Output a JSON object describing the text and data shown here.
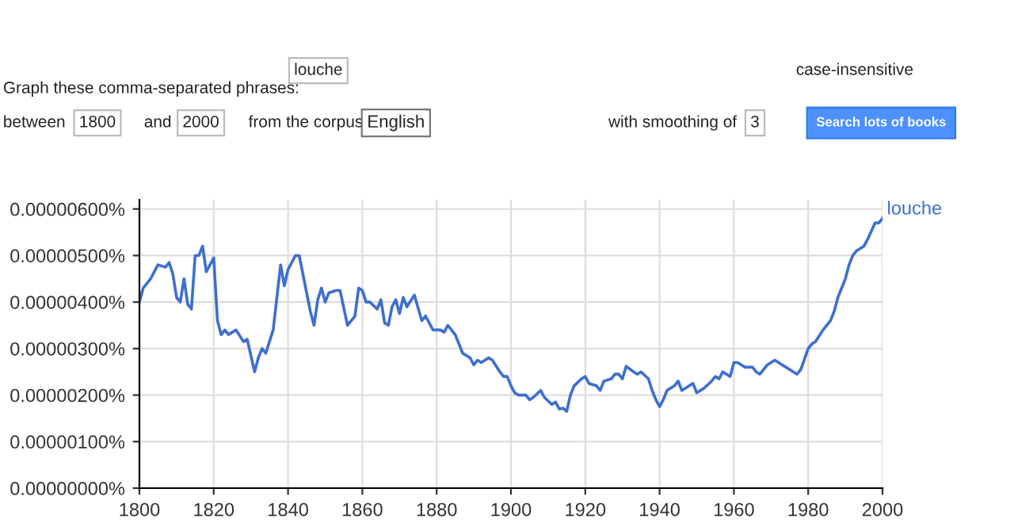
{
  "chart_data": {
    "type": "line",
    "annotations": [
      "Graph these comma-separated phrases:",
      "louche",
      "case-insensitive",
      "between",
      "1800",
      "and",
      "2000",
      "from the corpus",
      "English",
      "with smoothing of",
      "3",
      "Search lots of books"
    ],
    "x": [
      1800,
      1801,
      1803,
      1805,
      1807,
      1808,
      1809,
      1810,
      1811,
      1812,
      1813,
      1814,
      1815,
      1816,
      1817,
      1818,
      1820,
      1821,
      1822,
      1823,
      1824,
      1826,
      1828,
      1829,
      1831,
      1832,
      1833,
      1834,
      1836,
      1838,
      1839,
      1840,
      1842,
      1843,
      1844,
      1846,
      1847,
      1848,
      1849,
      1850,
      1851,
      1853,
      1854,
      1856,
      1858,
      1859,
      1860,
      1861,
      1862,
      1864,
      1865,
      1866,
      1867,
      1868,
      1869,
      1870,
      1871,
      1872,
      1874,
      1876,
      1877,
      1879,
      1881,
      1882,
      1883,
      1885,
      1886,
      1887,
      1889,
      1890,
      1891,
      1892,
      1894,
      1895,
      1897,
      1898,
      1899,
      1900,
      1901,
      1902,
      1903,
      1904,
      1905,
      1906,
      1908,
      1909,
      1911,
      1912,
      1913,
      1914,
      1915,
      1916,
      1917,
      1919,
      1920,
      1921,
      1923,
      1924,
      1925,
      1927,
      1928,
      1929,
      1930,
      1931,
      1933,
      1934,
      1935,
      1937,
      1938,
      1939,
      1940,
      1941,
      1942,
      1944,
      1945,
      1946,
      1948,
      1949,
      1950,
      1952,
      1954,
      1955,
      1956,
      1957,
      1959,
      1960,
      1961,
      1962,
      1963,
      1965,
      1966,
      1967,
      1969,
      1971,
      1972,
      1974,
      1976,
      1977,
      1978,
      1980,
      1981,
      1982,
      1984,
      1986,
      1987,
      1988,
      1990,
      1991,
      1992,
      1993,
      1995,
      1996,
      1998,
      1999,
      2000
    ],
    "series": [
      {
        "name": "louche",
        "color": "#3d6fcf",
        "values": [
          4e-06,
          4.3e-06,
          4.5e-06,
          4.8e-06,
          4.75e-06,
          4.85e-06,
          4.6e-06,
          4.1e-06,
          4e-06,
          4.5e-06,
          3.95e-06,
          3.85e-06,
          5e-06,
          5e-06,
          5.2e-06,
          4.65e-06,
          4.95e-06,
          3.6e-06,
          3.3e-06,
          3.4e-06,
          3.3e-06,
          3.4e-06,
          3.15e-06,
          3.2e-06,
          2.5e-06,
          2.8e-06,
          3e-06,
          2.9e-06,
          3.4e-06,
          4.8e-06,
          4.35e-06,
          4.7e-06,
          5e-06,
          5e-06,
          4.6e-06,
          3.8e-06,
          3.5e-06,
          4.05e-06,
          4.3e-06,
          4e-06,
          4.2e-06,
          4.25e-06,
          4.25e-06,
          3.5e-06,
          3.7e-06,
          4.3e-06,
          4.25e-06,
          4e-06,
          4e-06,
          3.85e-06,
          4.05e-06,
          3.55e-06,
          3.5e-06,
          3.9e-06,
          4.05e-06,
          3.75e-06,
          4.1e-06,
          3.9e-06,
          4.15e-06,
          3.6e-06,
          3.7e-06,
          3.4e-06,
          3.4e-06,
          3.35e-06,
          3.5e-06,
          3.3e-06,
          3.1e-06,
          2.9e-06,
          2.8e-06,
          2.65e-06,
          2.75e-06,
          2.7e-06,
          2.8e-06,
          2.75e-06,
          2.5e-06,
          2.4e-06,
          2.4e-06,
          2.2e-06,
          2.05e-06,
          2e-06,
          2e-06,
          2e-06,
          1.9e-06,
          1.95e-06,
          2.1e-06,
          1.95e-06,
          1.8e-06,
          1.85e-06,
          1.7e-06,
          1.72e-06,
          1.65e-06,
          2e-06,
          2.2e-06,
          2.35e-06,
          2.4e-06,
          2.25e-06,
          2.2e-06,
          2.1e-06,
          2.3e-06,
          2.35e-06,
          2.45e-06,
          2.45e-06,
          2.35e-06,
          2.62e-06,
          2.5e-06,
          2.45e-06,
          2.5e-06,
          2.35e-06,
          2.1e-06,
          1.9e-06,
          1.75e-06,
          1.9e-06,
          2.1e-06,
          2.2e-06,
          2.3e-06,
          2.1e-06,
          2.2e-06,
          2.25e-06,
          2.05e-06,
          2.15e-06,
          2.3e-06,
          2.4e-06,
          2.35e-06,
          2.5e-06,
          2.4e-06,
          2.7e-06,
          2.7e-06,
          2.65e-06,
          2.6e-06,
          2.6e-06,
          2.5e-06,
          2.45e-06,
          2.65e-06,
          2.75e-06,
          2.7e-06,
          2.6e-06,
          2.5e-06,
          2.45e-06,
          2.55e-06,
          3e-06,
          3.1e-06,
          3.15e-06,
          3.4e-06,
          3.6e-06,
          3.8e-06,
          4.1e-06,
          4.5e-06,
          4.8e-06,
          5e-06,
          5.1e-06,
          5.2e-06,
          5.35e-06,
          5.7e-06,
          5.7e-06,
          5.8e-06
        ]
      }
    ],
    "xlim": [
      1800,
      2000
    ],
    "xticks": [
      1800,
      1820,
      1840,
      1860,
      1880,
      1900,
      1920,
      1940,
      1960,
      1980,
      2000
    ],
    "ylim": [
      0,
      6.2e-06
    ],
    "yticks": [
      {
        "value": 0,
        "label": "0.00000000%"
      },
      {
        "value": 1e-06,
        "label": "0.00000100%"
      },
      {
        "value": 2e-06,
        "label": "0.00000200%"
      },
      {
        "value": 3e-06,
        "label": "0.00000300%"
      },
      {
        "value": 4e-06,
        "label": "0.00000400%"
      },
      {
        "value": 5e-06,
        "label": "0.00000500%"
      },
      {
        "value": 6e-06,
        "label": "0.00000600%"
      }
    ],
    "grid": true,
    "legend": false,
    "marker": "none",
    "line_style": "solid"
  }
}
